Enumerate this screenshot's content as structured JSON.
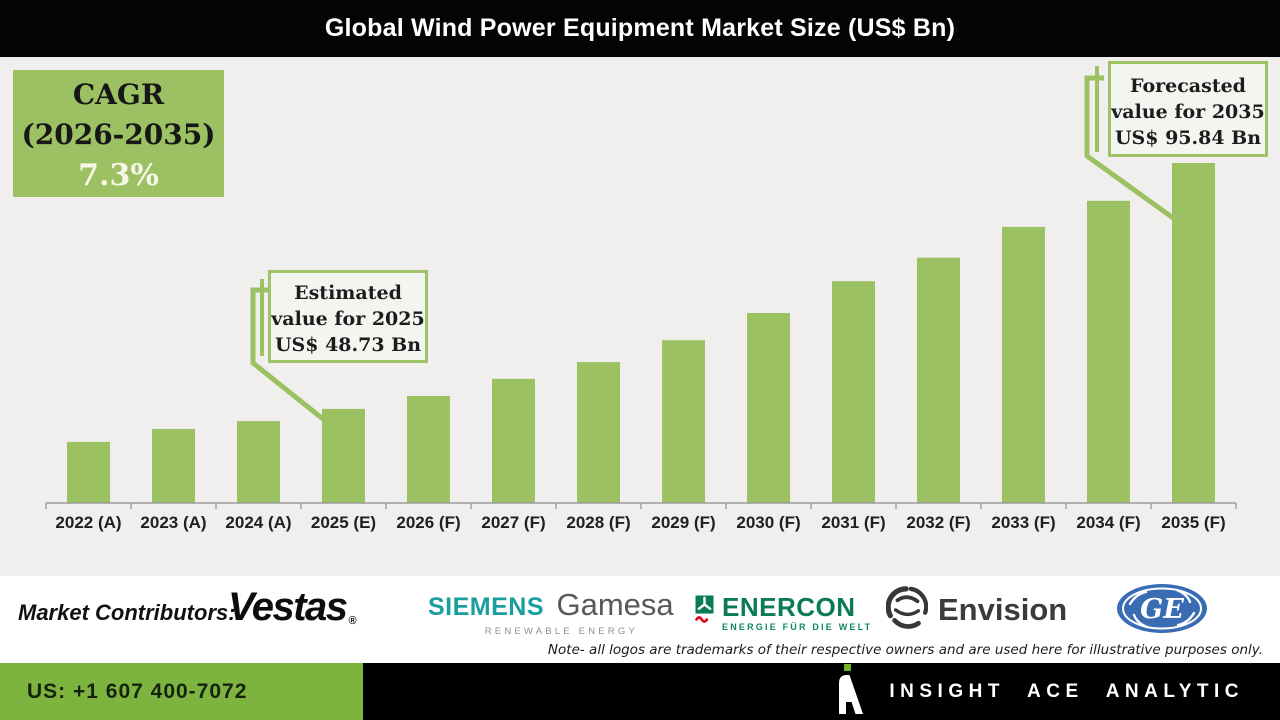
{
  "title": "Global Wind Power Equipment Market Size (US$ Bn)",
  "cagr_box": {
    "line1": "CAGR",
    "line2": "(2026-2035)",
    "value": "7.3%"
  },
  "callouts": {
    "estimated": {
      "line1": "Estimated",
      "line2": "value for 2025",
      "line3": "US$ 48.73 Bn"
    },
    "forecasted": {
      "line1": "Forecasted",
      "line2": "value for 2035",
      "line3": "US$ 95.84 Bn"
    }
  },
  "chart_data": {
    "type": "bar",
    "title": "Global Wind Power Equipment Market Size (US$ Bn)",
    "unit": "US$ Bn",
    "categories": [
      "2022 (A)",
      "2023 (A)",
      "2024 (A)",
      "2025 (E)",
      "2026 (F)",
      "2027 (F)",
      "2028 (F)",
      "2029 (F)",
      "2030 (F)",
      "2031 (F)",
      "2032 (F)",
      "2033 (F)",
      "2034 (F)",
      "2035 (F)"
    ],
    "values": [
      42.4,
      44.9,
      46.4,
      48.73,
      51.2,
      54.5,
      57.7,
      61.9,
      67.1,
      73.2,
      77.7,
      83.6,
      88.6,
      95.84
    ],
    "known_points": {
      "2025 (E)": 48.73,
      "2035 (F)": 95.84
    },
    "cagr_2026_2035_pct": 7.3,
    "ylim": [
      30.7,
      100
    ],
    "grid": false,
    "legend": "none",
    "bar_color": "#9cc163",
    "annotations": [
      {
        "target": "2025 (E)",
        "text": "Estimated value for 2025 US$ 48.73 Bn"
      },
      {
        "target": "2035 (F)",
        "text": "Forecasted value for 2035 US$ 95.84 Bn"
      },
      {
        "text": "CAGR (2026-2035) 7.3%"
      }
    ]
  },
  "contributors": {
    "label": "Market Contributors:",
    "vestas": {
      "name": "Vestas",
      "reg": "®"
    },
    "siemens_gamesa": {
      "part1": "SIEMENS",
      "part2": "Gamesa",
      "sub": "RENEWABLE ENERGY"
    },
    "enercon": {
      "name": "ENERCON",
      "sub": "ENERGIE FÜR DIE WELT"
    },
    "envision": {
      "name": "Envision"
    },
    "ge": {
      "monogram": "GE"
    }
  },
  "note": "Note- all logos are trademarks of their respective owners and are used here for illustrative purposes only.",
  "footer": {
    "phone": "US: +1 607 400-7072",
    "brand": "INSIGHT ACE ANALYTIC"
  },
  "colors": {
    "bar_green": "#9cc163",
    "box_green": "#9cc162",
    "footer_green": "#7db440",
    "siemens_teal": "#1a9e9e",
    "enercon_green": "#0a7b52",
    "enercon_red": "#e2001a",
    "ge_blue": "#3a6cb4",
    "envision_dark": "#37373c",
    "panel_gray": "#f0efed",
    "title_bg": "#040404"
  }
}
